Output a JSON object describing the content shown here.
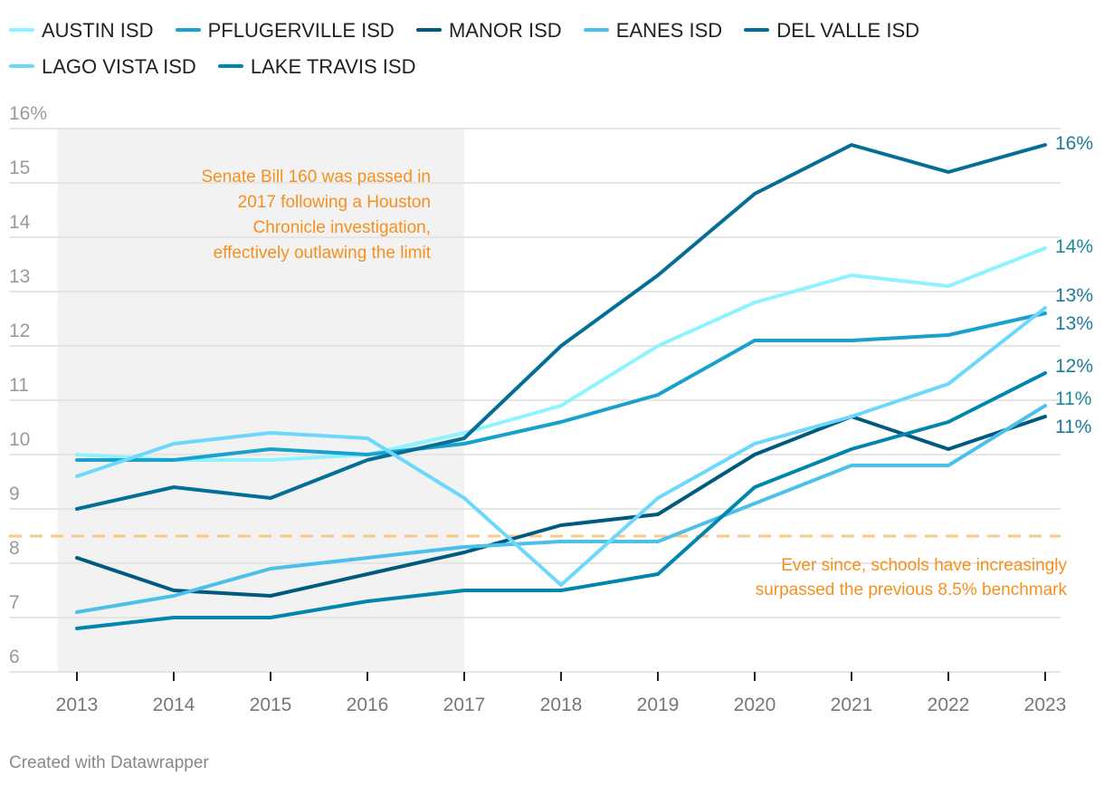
{
  "chart_data": {
    "type": "line",
    "title": "",
    "xlabel": "",
    "ylabel": "",
    "x": [
      2013,
      2014,
      2015,
      2016,
      2017,
      2018,
      2019,
      2020,
      2021,
      2022,
      2023
    ],
    "x_tick_labels": [
      "2013",
      "2014",
      "2015",
      "2016",
      "2017",
      "2018",
      "2019",
      "2020",
      "2021",
      "2022",
      "2023"
    ],
    "ylim": [
      6,
      16
    ],
    "y_ticks": [
      6,
      7,
      8,
      9,
      10,
      11,
      12,
      13,
      14,
      15,
      16
    ],
    "y_tick_labels": [
      "6",
      "7",
      "8",
      "9",
      "10",
      "11",
      "12",
      "13",
      "14",
      "15",
      "16%"
    ],
    "grid": true,
    "legend_position": "top",
    "series": [
      {
        "name": "AUSTIN ISD",
        "color": "#8ef2ff",
        "values": [
          10.0,
          9.9,
          9.9,
          10.0,
          10.4,
          10.9,
          12.0,
          12.8,
          13.3,
          13.1,
          13.8
        ],
        "end_label": "14%"
      },
      {
        "name": "PFLUGERVILLE ISD",
        "color": "#18a1cd",
        "values": [
          9.9,
          9.9,
          10.1,
          10.0,
          10.2,
          10.6,
          11.1,
          12.1,
          12.1,
          12.2,
          12.6
        ],
        "end_label": "13%"
      },
      {
        "name": "MANOR ISD",
        "color": "#005a7f",
        "values": [
          8.1,
          7.5,
          7.4,
          7.8,
          8.2,
          8.7,
          8.9,
          10.0,
          10.7,
          10.1,
          10.7
        ],
        "end_label": "11%"
      },
      {
        "name": "EANES ISD",
        "color": "#4bc0e8",
        "values": [
          7.1,
          7.4,
          7.9,
          8.1,
          8.3,
          8.4,
          8.4,
          9.1,
          9.8,
          9.8,
          10.9
        ],
        "end_label": "11%"
      },
      {
        "name": "DEL VALLE ISD",
        "color": "#036e96",
        "values": [
          9.0,
          9.4,
          9.2,
          9.9,
          10.3,
          12.0,
          13.3,
          14.8,
          15.7,
          15.2,
          15.7
        ],
        "end_label": "16%"
      },
      {
        "name": "LAGO VISTA ISD",
        "color": "#6bd8fc",
        "values": [
          9.6,
          10.2,
          10.4,
          10.3,
          9.2,
          7.6,
          9.2,
          10.2,
          10.7,
          11.3,
          12.7
        ],
        "end_label": "13%"
      },
      {
        "name": "LAKE TRAVIS ISD",
        "color": "#0085ad",
        "values": [
          6.8,
          7.0,
          7.0,
          7.3,
          7.5,
          7.5,
          7.8,
          9.4,
          10.1,
          10.6,
          11.5
        ],
        "end_label": "12%"
      }
    ],
    "shaded_range": {
      "x_from": 2012.8,
      "x_to": 2017
    },
    "reference_line": {
      "value": 8.5,
      "color": "#f9c98a",
      "style": "dashed"
    },
    "annotations": [
      {
        "id": "senate-bill",
        "lines": [
          "Senate Bill 160 was passed in",
          "2017 following a Houston",
          "Chronicle investigation,",
          "effectively outlawing the limit"
        ],
        "color": "#f5901e"
      },
      {
        "id": "benchmark",
        "lines": [
          "Ever since, schools have increasingly",
          "surpassed the previous 8.5% benchmark"
        ],
        "color": "#f5901e"
      }
    ]
  },
  "legend": {
    "items": [
      "AUSTIN ISD",
      "PFLUGERVILLE ISD",
      "MANOR ISD",
      "EANES ISD",
      "DEL VALLE ISD",
      "LAGO VISTA ISD",
      "LAKE TRAVIS ISD"
    ]
  },
  "footer": {
    "credit": "Created with Datawrapper"
  },
  "colors": {
    "grid": "#e5e5e5",
    "axis_text": "#9a9a9a",
    "shade": "#f2f2f2",
    "end_label": "#1f7a99",
    "end_label_teal": "#1a8a96"
  }
}
